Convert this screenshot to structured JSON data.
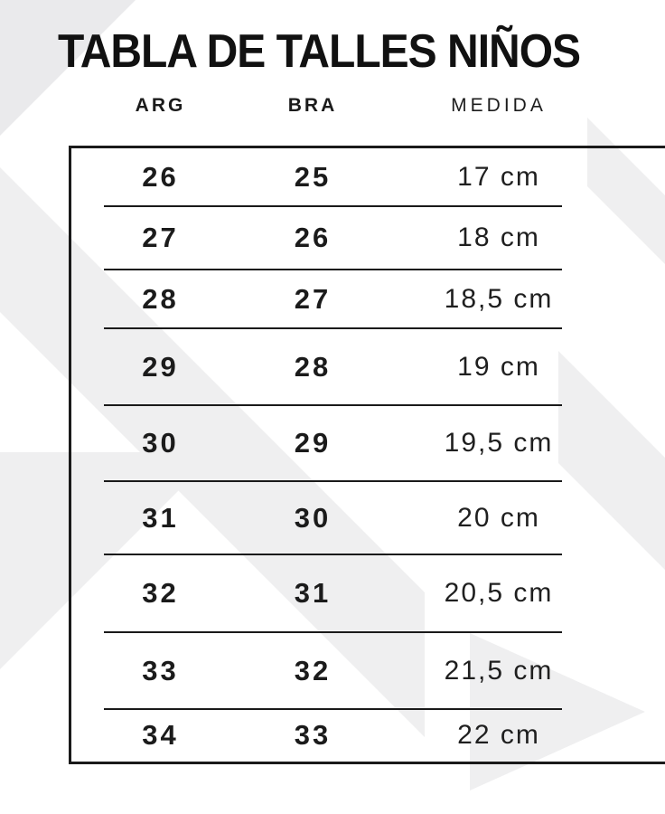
{
  "title": "TABLA DE TALLES NIÑOS",
  "table": {
    "columns": [
      {
        "key": "arg",
        "label": "ARG"
      },
      {
        "key": "bra",
        "label": "BRA"
      },
      {
        "key": "medida",
        "label": "MEDIDA"
      }
    ],
    "rows": [
      [
        "26",
        "25",
        "17 cm"
      ],
      [
        "27",
        "26",
        "18 cm"
      ],
      [
        "28",
        "27",
        "18,5 cm"
      ],
      [
        "29",
        "28",
        "19 cm"
      ],
      [
        "30",
        "29",
        "19,5 cm"
      ],
      [
        "31",
        "30",
        "20 cm"
      ],
      [
        "32",
        "31",
        "20,5 cm"
      ],
      [
        "33",
        "32",
        "21,5 cm"
      ],
      [
        "34",
        "33",
        "22 cm"
      ]
    ]
  },
  "chart_data": {
    "type": "table",
    "title": "TABLA DE TALLES NIÑOS",
    "columns": [
      "ARG",
      "BRA",
      "MEDIDA"
    ],
    "rows": [
      [
        "26",
        "25",
        "17 cm"
      ],
      [
        "27",
        "26",
        "18 cm"
      ],
      [
        "28",
        "27",
        "18,5 cm"
      ],
      [
        "29",
        "28",
        "19 cm"
      ],
      [
        "30",
        "29",
        "19,5 cm"
      ],
      [
        "31",
        "30",
        "20 cm"
      ],
      [
        "32",
        "31",
        "20,5 cm"
      ],
      [
        "33",
        "32",
        "21,5 cm"
      ],
      [
        "34",
        "33",
        "22 cm"
      ]
    ]
  },
  "colors": {
    "text": "#1b1b1b",
    "line": "#1a1a1a",
    "background": "#ffffff",
    "pattern_gray": "#efeff0"
  }
}
